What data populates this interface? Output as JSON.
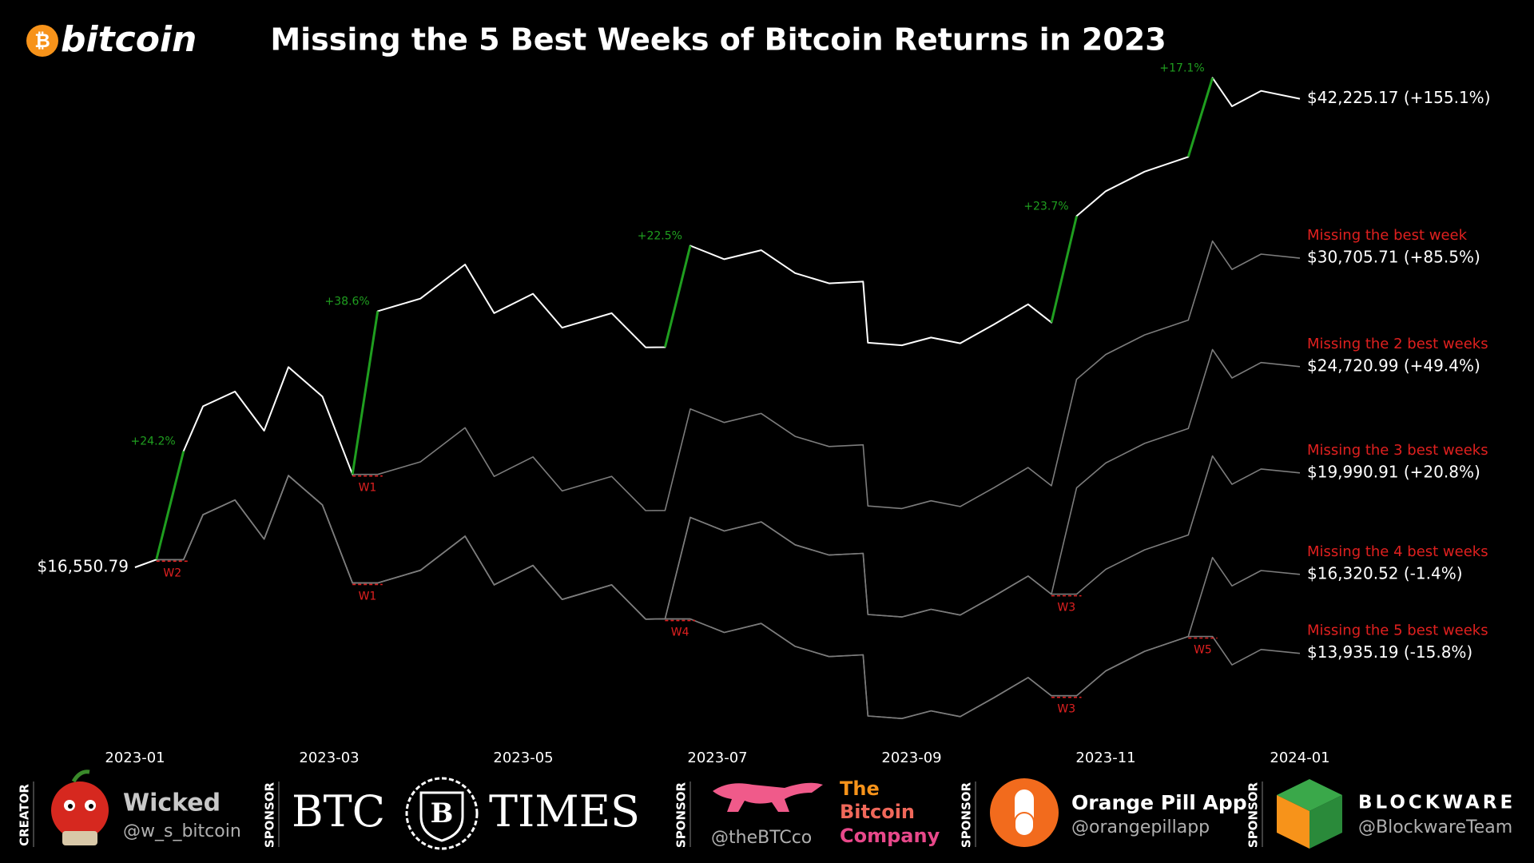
{
  "branding": {
    "logo_symbol": "₿",
    "logo_text": "bitcoin"
  },
  "chart_data": {
    "type": "line",
    "title": "Missing the 5 Best Weeks of Bitcoin Returns in 2023",
    "log_scale": true,
    "grid": false,
    "x": [
      1.0,
      1.22,
      1.5,
      1.7,
      2.03,
      2.33,
      2.58,
      2.93,
      3.24,
      3.5,
      3.94,
      4.4,
      4.7,
      5.1,
      5.4,
      5.91,
      6.26,
      6.46,
      6.72,
      7.07,
      7.45,
      7.8,
      8.15,
      8.5,
      8.55,
      8.9,
      9.2,
      9.5,
      9.85,
      10.2,
      10.44,
      10.7,
      11.0,
      11.4,
      11.85,
      12.1,
      12.3,
      12.6,
      13.0
    ],
    "xlim": [
      1,
      13
    ],
    "xticks": [
      {
        "value": 1,
        "label": "2023-01"
      },
      {
        "value": 3,
        "label": "2023-03"
      },
      {
        "value": 5,
        "label": "2023-05"
      },
      {
        "value": 7,
        "label": "2023-07"
      },
      {
        "value": 9,
        "label": "2023-09"
      },
      {
        "value": 11,
        "label": "2023-11"
      },
      {
        "value": 13,
        "label": "2024-01"
      }
    ],
    "ylim": [
      11500,
      46000
    ],
    "highlight_color": "#1f9e1f",
    "skip_color": "#e02020",
    "name_color": "#e0201f",
    "best_weeks": [
      {
        "label": "+24.2%",
        "x0": 1.22,
        "x1": 1.5
      },
      {
        "label": "+38.6%",
        "x0": 3.24,
        "x1": 3.5
      },
      {
        "label": "+22.5%",
        "x0": 6.46,
        "x1": 6.72
      },
      {
        "label": "+23.7%",
        "x0": 10.44,
        "x1": 10.7
      },
      {
        "label": "+17.1%",
        "x0": 11.85,
        "x1": 12.1
      }
    ],
    "series": [
      {
        "color": "#ffffff",
        "start_label": "$16,550.79",
        "end_label": "$42,225.17 (+155.1%)",
        "skipped_weeks": [],
        "values": [
          16550.79,
          16810,
          20880,
          22840,
          23520,
          21750,
          24700,
          23290,
          19930,
          27620,
          28320,
          30320,
          27510,
          28600,
          26720,
          27510,
          25690,
          25700,
          31480,
          30640,
          31200,
          29800,
          29200,
          29300,
          25930,
          25800,
          26200,
          25900,
          26900,
          28000,
          27000,
          33400,
          35100,
          36500,
          37600,
          44030,
          41600,
          42900,
          42225.17
        ]
      },
      {
        "name": "Missing the best week",
        "color": "#7c7c7c",
        "end_label": "$30,705.71 (+85.5%)",
        "skipped_weeks": [
          {
            "label": "W1",
            "x0": 3.24,
            "x1": 3.5
          }
        ],
        "values": [
          16550.79,
          16810,
          20880,
          22840,
          23520,
          21750,
          24700,
          23290,
          19930,
          19930,
          20436,
          21879,
          19851,
          20638,
          19281,
          19851,
          18538,
          18545,
          22716,
          22110,
          22514,
          21504,
          21071,
          21143,
          18711,
          18617,
          18906,
          18690,
          19411,
          20205,
          19483,
          24102,
          25329,
          26339,
          27132,
          31772,
          30019,
          30957,
          30705.71
        ]
      },
      {
        "name": "Missing the 2 best weeks",
        "color": "#7c7c7c",
        "end_label": "$24,720.99 (+49.4%)",
        "skipped_weeks": [
          {
            "label": "W2",
            "x0": 1.22,
            "x1": 1.5
          },
          {
            "label": "W1",
            "x0": 3.24,
            "x1": 3.5
          }
        ],
        "values": [
          16550.79,
          16810,
          16810,
          18388,
          18936,
          17511,
          19886,
          18751,
          16045,
          16045,
          16453,
          17615,
          15982,
          16615,
          15523,
          15982,
          14925,
          14930,
          18288,
          17800,
          18126,
          17313,
          16964,
          17022,
          15064,
          14988,
          15221,
          15047,
          15627,
          16267,
          15686,
          19404,
          20392,
          21205,
          21844,
          25579,
          24168,
          24923,
          24720.99
        ]
      },
      {
        "name": "Missing the 3 best weeks",
        "color": "#7c7c7c",
        "end_label": "$19,990.91 (+20.8%)",
        "skipped_weeks": [
          {
            "label": "W3",
            "x0": 10.44,
            "x1": 10.7
          }
        ],
        "values": [
          16550.79,
          16810,
          16810,
          18388,
          18936,
          17511,
          19886,
          18751,
          16045,
          16045,
          16453,
          17615,
          15982,
          16615,
          15523,
          15982,
          14925,
          14930,
          18288,
          17800,
          18126,
          17313,
          16964,
          17022,
          15064,
          14988,
          15221,
          15047,
          15627,
          16267,
          15686,
          15686,
          16485,
          17142,
          17659,
          20678,
          19538,
          20148,
          19990.91
        ]
      },
      {
        "name": "Missing the 4 best weeks",
        "color": "#7c7c7c",
        "end_label": "$16,320.52 (-1.4%)",
        "skipped_weeks": [
          {
            "label": "W4",
            "x0": 6.46,
            "x1": 6.72
          },
          {
            "label": "W3",
            "x0": 10.44,
            "x1": 10.7
          }
        ],
        "values": [
          16550.79,
          16810,
          16810,
          18388,
          18936,
          17511,
          19886,
          18751,
          16045,
          16045,
          16453,
          17615,
          15982,
          16615,
          15523,
          15982,
          14925,
          14930,
          14930,
          14531,
          14797,
          14133,
          13848,
          13896,
          12297,
          12235,
          12425,
          12283,
          12757,
          13279,
          12805,
          12805,
          13457,
          13993,
          14416,
          16880,
          15949,
          16447,
          16320.52
        ]
      },
      {
        "name": "Missing the 5 best weeks",
        "color": "#7c7c7c",
        "end_label": "$13,935.19 (-15.8%)",
        "skipped_weeks": [
          {
            "label": "W5",
            "x0": 11.85,
            "x1": 12.1
          }
        ],
        "values": [
          16550.79,
          16810,
          16810,
          18388,
          18936,
          17511,
          19886,
          18751,
          16045,
          16045,
          16453,
          17615,
          15982,
          16615,
          15523,
          15982,
          14925,
          14930,
          14930,
          14531,
          14797,
          14133,
          13848,
          13896,
          12297,
          12235,
          12425,
          12283,
          12757,
          13279,
          12805,
          12805,
          13457,
          13993,
          14416,
          14416,
          13620,
          14045,
          13935.19
        ]
      }
    ]
  },
  "credits": [
    {
      "role": "CREATOR",
      "name": "Wicked",
      "handle": "@w_s_bitcoin"
    },
    {
      "role": "SPONSOR",
      "name_left": "BTC",
      "emblem": "B",
      "name_right": "TIMES"
    },
    {
      "role": "SPONSOR",
      "handle": "@theBTCco",
      "name_lines": [
        "The",
        "Bitcoin",
        "Company"
      ]
    },
    {
      "role": "SPONSOR",
      "name": "Orange Pill App",
      "handle": "@orangepillapp"
    },
    {
      "role": "SPONSOR",
      "name": "BLOCKWARE",
      "handle": "@BlockwareTeam"
    }
  ]
}
